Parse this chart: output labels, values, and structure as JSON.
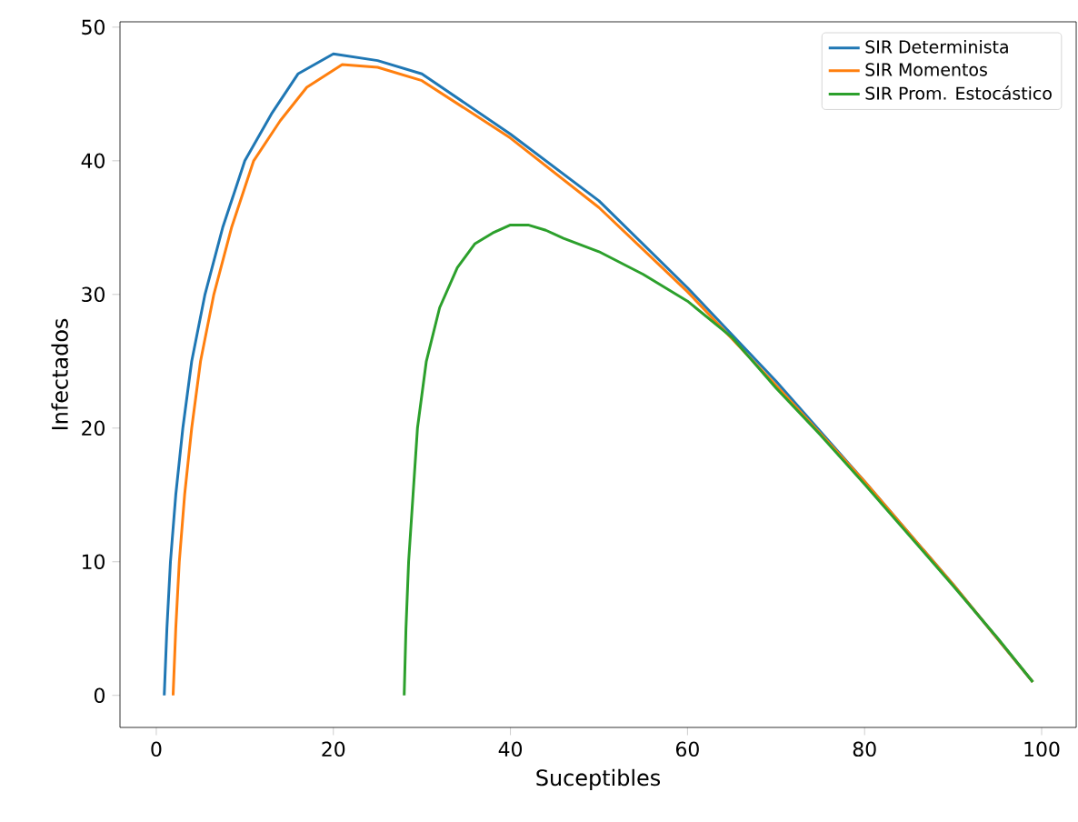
{
  "chart_data": {
    "type": "line",
    "xlabel": "Suceptibles",
    "ylabel": "Infectados",
    "xlim": [
      -4.1,
      103.9
    ],
    "ylim": [
      -2.4,
      50.4
    ],
    "xticks": [
      0,
      20,
      40,
      60,
      80,
      100
    ],
    "yticks": [
      0,
      10,
      20,
      30,
      40,
      50
    ],
    "legend": "top right",
    "grid": false,
    "marker": "none",
    "line_style": "solid",
    "series": [
      {
        "name": "SIR Determinista",
        "color": "#1f77b4",
        "x": [
          0.9,
          1.2,
          1.6,
          2.2,
          3,
          4,
          5.5,
          7.5,
          10,
          13,
          16,
          20,
          25,
          30,
          40,
          50,
          60,
          70,
          80,
          90,
          99
        ],
        "values": [
          0,
          5,
          10,
          15,
          20,
          25,
          30,
          35,
          40,
          43.5,
          46.5,
          48,
          47.5,
          46.5,
          42,
          37,
          30.5,
          23.5,
          16,
          8.3,
          1
        ]
      },
      {
        "name": "SIR Momentos",
        "color": "#ff7f0e",
        "x": [
          1.9,
          2.2,
          2.6,
          3.2,
          4,
          5,
          6.5,
          8.5,
          11,
          14,
          17,
          21,
          25,
          30,
          40,
          50,
          60,
          70,
          80,
          90,
          99
        ],
        "values": [
          0,
          5,
          10,
          15,
          20,
          25,
          30,
          35,
          40,
          43,
          45.5,
          47.2,
          47,
          46,
          41.7,
          36.5,
          30.2,
          23.2,
          16,
          8.3,
          1
        ]
      },
      {
        "name": "SIR Prom. Estocástico",
        "color": "#2ca02c",
        "x": [
          28,
          28.2,
          28.5,
          29,
          29.5,
          30.5,
          32,
          34,
          36,
          38,
          40,
          42,
          44,
          46,
          50,
          55,
          60,
          65,
          70,
          75,
          80,
          85,
          90,
          95,
          99
        ],
        "values": [
          0,
          5,
          10,
          15,
          20,
          25,
          29,
          32,
          33.8,
          34.6,
          35.2,
          35.2,
          34.8,
          34.2,
          33.2,
          31.5,
          29.5,
          26.8,
          23,
          19.5,
          15.8,
          12,
          8.2,
          4.3,
          1
        ]
      }
    ]
  }
}
